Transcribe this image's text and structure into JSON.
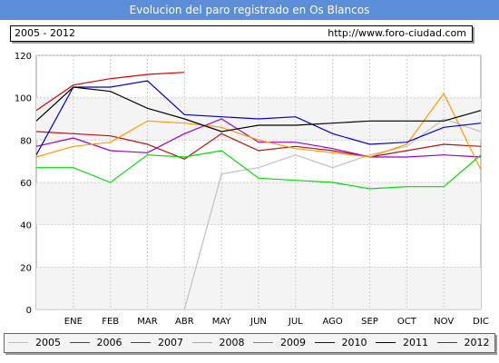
{
  "header": {
    "title": "Evolucion del paro registrado en Os Blancos",
    "period": "2005 - 2012",
    "site": "http://www.foro-ciudad.com"
  },
  "chart_data": {
    "type": "line",
    "categories": [
      "",
      "ENE",
      "FEB",
      "MAR",
      "ABR",
      "MAY",
      "JUN",
      "JUL",
      "AGO",
      "SEP",
      "OCT",
      "NOV",
      "DIC"
    ],
    "ylim": [
      0,
      120
    ],
    "yticks": [
      0,
      20,
      40,
      60,
      80,
      100,
      120
    ],
    "grid": true,
    "legend": "bottom",
    "series": [
      {
        "name": "2005",
        "color": "#c0c0c0",
        "values": [
          null,
          null,
          null,
          null,
          0,
          64,
          67,
          73,
          67,
          73,
          77,
          90,
          84
        ]
      },
      {
        "name": "2006",
        "color": "#bb1111",
        "values": [
          84,
          83,
          82,
          78,
          71,
          83,
          75,
          77,
          75,
          72,
          75,
          78,
          77
        ]
      },
      {
        "name": "2007",
        "color": "#9900cc",
        "values": [
          77,
          81,
          75,
          74,
          83,
          90,
          79,
          79,
          76,
          72,
          72,
          73,
          72
        ]
      },
      {
        "name": "2008",
        "color": "#ff9900",
        "values": [
          72,
          77,
          79,
          89,
          88,
          86,
          80,
          76,
          74,
          72,
          78,
          102,
          66
        ]
      },
      {
        "name": "2009",
        "color": "#00dd00",
        "values": [
          67,
          67,
          60,
          73,
          72,
          75,
          62,
          61,
          60,
          57,
          58,
          58,
          73
        ]
      },
      {
        "name": "2010",
        "color": "#0000cc",
        "values": [
          73,
          105,
          105,
          108,
          92,
          91,
          90,
          91,
          83,
          78,
          79,
          86,
          88
        ]
      },
      {
        "name": "2011",
        "color": "#000000",
        "values": [
          89,
          105,
          103,
          95,
          90,
          84,
          87,
          87,
          88,
          89,
          89,
          89,
          94
        ]
      },
      {
        "name": "2012",
        "color": "#dd0000",
        "values": [
          94,
          106,
          109,
          111,
          112,
          null,
          null,
          null,
          null,
          null,
          null,
          null,
          null
        ]
      }
    ]
  }
}
